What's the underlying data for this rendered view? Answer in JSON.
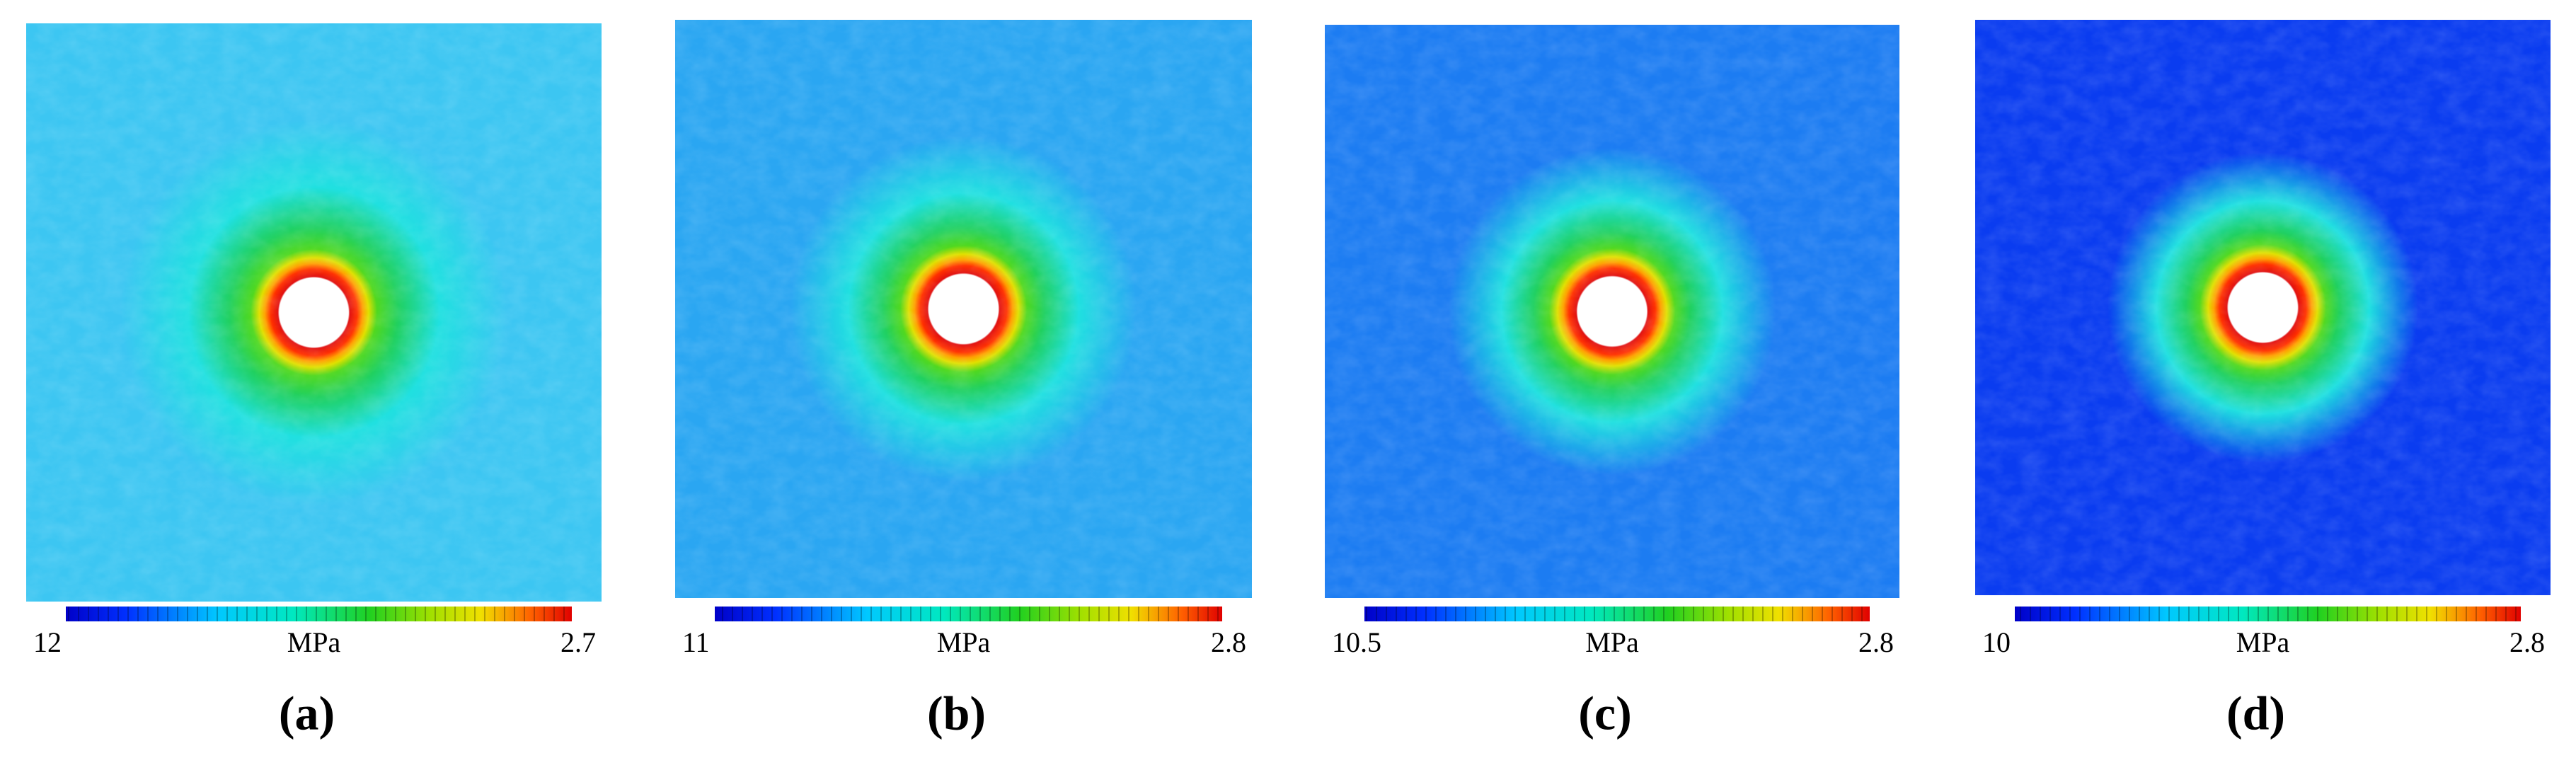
{
  "panels": [
    {
      "label": "(a)",
      "colorbar": {
        "min": 12,
        "unit": "MPa",
        "max": 2.7
      }
    },
    {
      "label": "(b)",
      "colorbar": {
        "min": 11,
        "unit": "MPa",
        "max": 2.8
      }
    },
    {
      "label": "(c)",
      "colorbar": {
        "min": 10.5,
        "unit": "MPa",
        "max": 2.8
      }
    },
    {
      "label": "(d)",
      "colorbar": {
        "min": 10,
        "unit": "MPa",
        "max": 2.8
      }
    }
  ]
}
